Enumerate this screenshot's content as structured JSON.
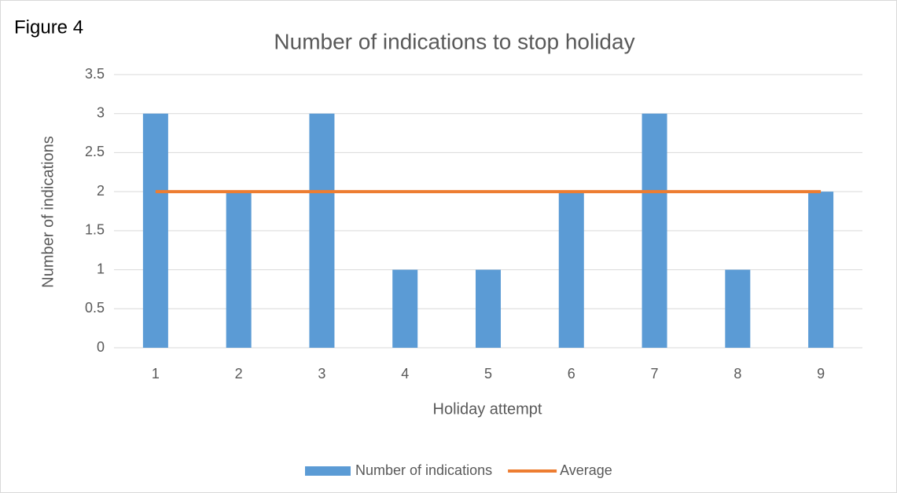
{
  "chart_data": {
    "type": "bar",
    "title": "Number of indications to stop holiday",
    "annotation": "Figure 4",
    "x_label": "Holiday attempt",
    "y_label": "Number of indications",
    "categories": [
      "1",
      "2",
      "3",
      "4",
      "5",
      "6",
      "7",
      "8",
      "9"
    ],
    "series": [
      {
        "name": "Number of indications",
        "type": "bar",
        "color": "#5b9bd5",
        "values": [
          3,
          2,
          3,
          1,
          1,
          2,
          3,
          1,
          2
        ]
      },
      {
        "name": "Average",
        "type": "line",
        "color": "#ed7d31",
        "values": [
          2,
          2,
          2,
          2,
          2,
          2,
          2,
          2,
          2
        ]
      }
    ],
    "ylim": [
      0,
      3.5
    ],
    "yticks": [
      0,
      0.5,
      1,
      1.5,
      2,
      2.5,
      3,
      3.5
    ],
    "grid": true,
    "legend": "bottom"
  }
}
